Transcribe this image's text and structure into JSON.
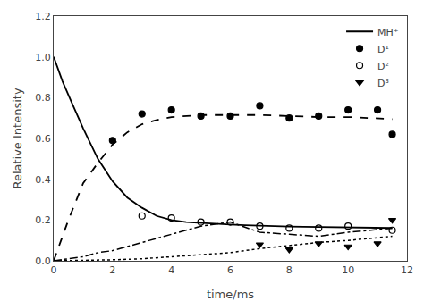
{
  "chart_data": {
    "type": "line",
    "xlabel": "time/ms",
    "ylabel": "Relative Intensity",
    "xlim": [
      0,
      12
    ],
    "ylim": [
      0,
      1.2
    ],
    "xticks": [
      0,
      2,
      4,
      6,
      8,
      10,
      12
    ],
    "yticks": [
      {
        "value": 0.0,
        "label": "0.0"
      },
      {
        "value": 0.2,
        "label": "0.2"
      },
      {
        "value": 0.4,
        "label": "0.4"
      },
      {
        "value": 0.6,
        "label": "0.6"
      },
      {
        "value": 0.8,
        "label": "0.8"
      },
      {
        "value": 1.0,
        "label": "1.0"
      },
      {
        "value": 1.2,
        "label": "1.2"
      }
    ],
    "grid": false,
    "legend": "upper right",
    "series": [
      {
        "name": "MH⁺",
        "type": "line",
        "line_style": "solid",
        "color": "#000000",
        "x": [
          0,
          0.3,
          0.6,
          1.0,
          1.5,
          2.0,
          2.5,
          3.0,
          3.5,
          4.0,
          4.5,
          5.0,
          5.5,
          6.0,
          6.5,
          7.0,
          7.5,
          8.0,
          8.5,
          9.0,
          9.5,
          10.0,
          10.5,
          11.0,
          11.5
        ],
        "values": [
          1.0,
          0.88,
          0.78,
          0.65,
          0.5,
          0.39,
          0.31,
          0.26,
          0.22,
          0.2,
          0.19,
          0.185,
          0.18,
          0.178,
          0.175,
          0.172,
          0.17,
          0.168,
          0.167,
          0.166,
          0.165,
          0.164,
          0.163,
          0.162,
          0.161
        ]
      },
      {
        "type": "line",
        "line_style": "dashed",
        "color": "#000000",
        "x": [
          0,
          0.5,
          1.0,
          1.5,
          2.0,
          2.5,
          3.0,
          3.5,
          4.0,
          5.0,
          6.0,
          7.0,
          8.0,
          9.0,
          10.0,
          11.0,
          11.5
        ],
        "values": [
          0.0,
          0.2,
          0.38,
          0.48,
          0.57,
          0.63,
          0.67,
          0.69,
          0.705,
          0.715,
          0.715,
          0.715,
          0.71,
          0.705,
          0.705,
          0.7,
          0.695
        ]
      },
      {
        "name": "D¹",
        "type": "scatter",
        "marker": "circle",
        "color": "#000000",
        "x": [
          2.0,
          3.0,
          4.0,
          5.0,
          6.0,
          7.0,
          8.0,
          9.0,
          10.0,
          11.0,
          11.5
        ],
        "values": [
          0.59,
          0.72,
          0.74,
          0.71,
          0.71,
          0.76,
          0.7,
          0.71,
          0.74,
          0.74,
          0.62
        ]
      },
      {
        "type": "line",
        "line_style": "dashdot",
        "color": "#000000",
        "x": [
          0,
          0.5,
          1.0,
          1.5,
          2.0,
          2.5,
          3.0,
          3.5,
          4.0,
          5.0,
          6.0,
          7.0,
          8.0,
          9.0,
          10.0,
          11.0,
          11.5
        ],
        "values": [
          0.0,
          0.01,
          0.02,
          0.04,
          0.05,
          0.07,
          0.09,
          0.11,
          0.13,
          0.17,
          0.19,
          0.14,
          0.13,
          0.12,
          0.14,
          0.155,
          0.16
        ]
      },
      {
        "name": "D²",
        "type": "scatter",
        "marker": "circle-open",
        "color": "#000000",
        "x": [
          3.0,
          4.0,
          5.0,
          6.0,
          7.0,
          8.0,
          9.0,
          10.0,
          11.5
        ],
        "values": [
          0.22,
          0.21,
          0.19,
          0.19,
          0.17,
          0.16,
          0.16,
          0.17,
          0.15
        ]
      },
      {
        "type": "line",
        "line_style": "dotted",
        "color": "#000000",
        "x": [
          0,
          1.0,
          2.0,
          3.0,
          4.0,
          5.0,
          6.0,
          7.0,
          8.0,
          9.0,
          10.0,
          11.0,
          11.5
        ],
        "values": [
          0.0,
          0.002,
          0.005,
          0.01,
          0.02,
          0.03,
          0.04,
          0.06,
          0.075,
          0.09,
          0.1,
          0.115,
          0.12
        ]
      },
      {
        "name": "D³",
        "type": "scatter",
        "marker": "triangle-down",
        "color": "#000000",
        "x": [
          7.0,
          8.0,
          9.0,
          10.0,
          11.0,
          11.5
        ],
        "values": [
          0.08,
          0.055,
          0.085,
          0.07,
          0.085,
          0.2
        ]
      }
    ]
  }
}
